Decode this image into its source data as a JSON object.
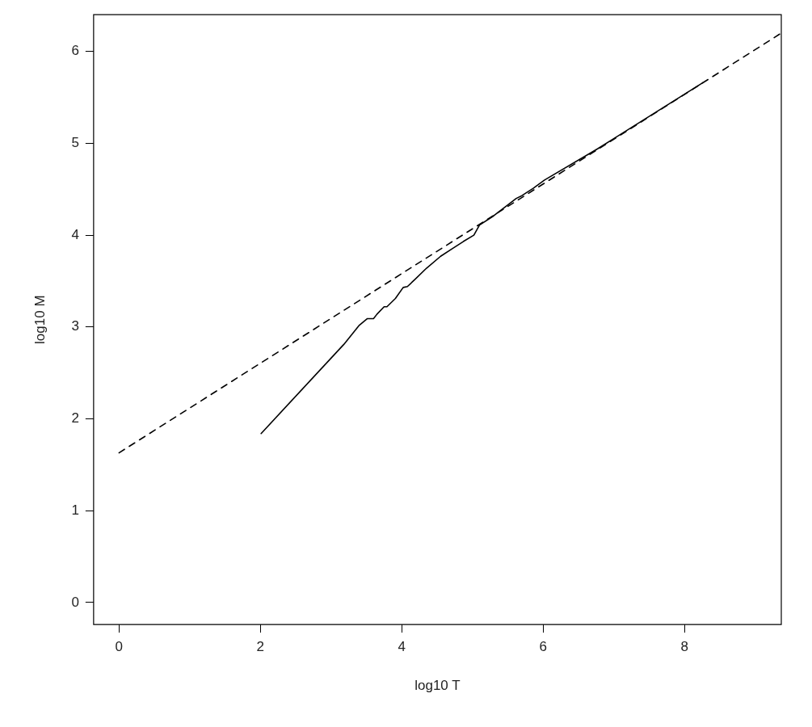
{
  "chart_data": {
    "type": "line",
    "xlabel": "log10 T",
    "ylabel": "log10 M",
    "xlim": [
      -0.36,
      9.37
    ],
    "ylim": [
      -0.24,
      6.4
    ],
    "xticks": [
      0,
      2,
      4,
      6,
      8
    ],
    "yticks": [
      0,
      1,
      2,
      3,
      4,
      5,
      6
    ],
    "grid": false,
    "legend": false,
    "marker": "none",
    "series": [
      {
        "color": "#000000",
        "line_style": "solid",
        "x": [
          2.01,
          3.18,
          3.4,
          3.51,
          3.6,
          3.65,
          3.75,
          3.79,
          3.91,
          4.02,
          4.08,
          4.19,
          4.35,
          4.55,
          4.71,
          4.87,
          5.02,
          5.1,
          5.3,
          5.62,
          5.7,
          5.86,
          6.02,
          6.77,
          8.26
        ],
        "values": [
          1.84,
          2.81,
          3.02,
          3.09,
          3.09,
          3.14,
          3.22,
          3.22,
          3.31,
          3.43,
          3.44,
          3.52,
          3.64,
          3.77,
          3.85,
          3.93,
          4.0,
          4.11,
          4.21,
          4.4,
          4.43,
          4.51,
          4.6,
          4.94,
          5.66
        ]
      },
      {
        "color": "#000000",
        "line_style": "dashed",
        "x": [
          0,
          9.37
        ],
        "values": [
          1.63,
          6.2
        ]
      }
    ]
  }
}
